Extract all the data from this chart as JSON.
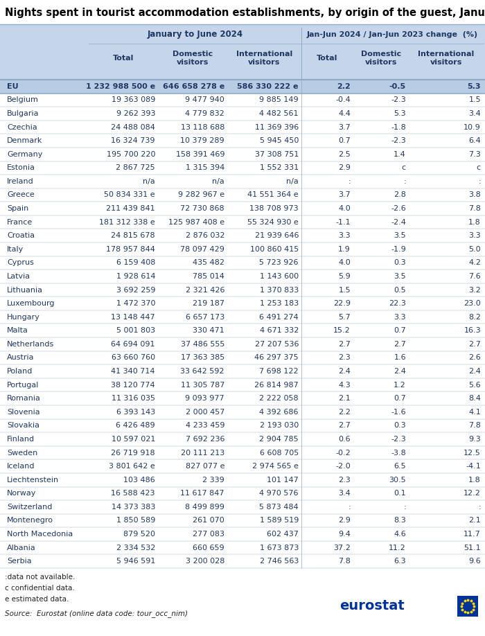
{
  "title": "Nights spent in tourist accommodation establishments, by origin of the guest, January to",
  "rows": [
    [
      "EU",
      "1 232 988 500 e",
      "646 658 278 e",
      "586 330 222 e",
      "2.2",
      "-0.5",
      "5.3"
    ],
    [
      "Belgium",
      "19 363 089",
      "9 477 940",
      "9 885 149",
      "-0.4",
      "-2.3",
      "1.5"
    ],
    [
      "Bulgaria",
      "9 262 393",
      "4 779 832",
      "4 482 561",
      "4.4",
      "5.3",
      "3.4"
    ],
    [
      "Czechia",
      "24 488 084",
      "13 118 688",
      "11 369 396",
      "3.7",
      "-1.8",
      "10.9"
    ],
    [
      "Denmark",
      "16 324 739",
      "10 379 289",
      "5 945 450",
      "0.7",
      "-2.3",
      "6.4"
    ],
    [
      "Germany",
      "195 700 220",
      "158 391 469",
      "37 308 751",
      "2.5",
      "1.4",
      "7.3"
    ],
    [
      "Estonia",
      "2 867 725",
      "1 315 394",
      "1 552 331",
      "2.9",
      "c",
      "c"
    ],
    [
      "Ireland",
      "n/a",
      "n/a",
      "n/a",
      ":",
      ":",
      ":"
    ],
    [
      "Greece",
      "50 834 331 e",
      "9 282 967 e",
      "41 551 364 e",
      "3.7",
      "2.8",
      "3.8"
    ],
    [
      "Spain",
      "211 439 841",
      "72 730 868",
      "138 708 973",
      "4.0",
      "-2.6",
      "7.8"
    ],
    [
      "France",
      "181 312 338 e",
      "125 987 408 e",
      "55 324 930 e",
      "-1.1",
      "-2.4",
      "1.8"
    ],
    [
      "Croatia",
      "24 815 678",
      "2 876 032",
      "21 939 646",
      "3.3",
      "3.5",
      "3.3"
    ],
    [
      "Italy",
      "178 957 844",
      "78 097 429",
      "100 860 415",
      "1.9",
      "-1.9",
      "5.0"
    ],
    [
      "Cyprus",
      "6 159 408",
      "435 482",
      "5 723 926",
      "4.0",
      "0.3",
      "4.2"
    ],
    [
      "Latvia",
      "1 928 614",
      "785 014",
      "1 143 600",
      "5.9",
      "3.5",
      "7.6"
    ],
    [
      "Lithuania",
      "3 692 259",
      "2 321 426",
      "1 370 833",
      "1.5",
      "0.5",
      "3.2"
    ],
    [
      "Luxembourg",
      "1 472 370",
      "219 187",
      "1 253 183",
      "22.9",
      "22.3",
      "23.0"
    ],
    [
      "Hungary",
      "13 148 447",
      "6 657 173",
      "6 491 274",
      "5.7",
      "3.3",
      "8.2"
    ],
    [
      "Malta",
      "5 001 803",
      "330 471",
      "4 671 332",
      "15.2",
      "0.7",
      "16.3"
    ],
    [
      "Netherlands",
      "64 694 091",
      "37 486 555",
      "27 207 536",
      "2.7",
      "2.7",
      "2.7"
    ],
    [
      "Austria",
      "63 660 760",
      "17 363 385",
      "46 297 375",
      "2.3",
      "1.6",
      "2.6"
    ],
    [
      "Poland",
      "41 340 714",
      "33 642 592",
      "7 698 122",
      "2.4",
      "2.4",
      "2.4"
    ],
    [
      "Portugal",
      "38 120 774",
      "11 305 787",
      "26 814 987",
      "4.3",
      "1.2",
      "5.6"
    ],
    [
      "Romania",
      "11 316 035",
      "9 093 977",
      "2 222 058",
      "2.1",
      "0.7",
      "8.4"
    ],
    [
      "Slovenia",
      "6 393 143",
      "2 000 457",
      "4 392 686",
      "2.2",
      "-1.6",
      "4.1"
    ],
    [
      "Slovakia",
      "6 426 489",
      "4 233 459",
      "2 193 030",
      "2.7",
      "0.3",
      "7.8"
    ],
    [
      "Finland",
      "10 597 021",
      "7 692 236",
      "2 904 785",
      "0.6",
      "-2.3",
      "9.3"
    ],
    [
      "Sweden",
      "26 719 918",
      "20 111 213",
      "6 608 705",
      "-0.2",
      "-3.8",
      "12.5"
    ],
    [
      "Iceland",
      "3 801 642 e",
      "827 077 e",
      "2 974 565 e",
      "-2.0",
      "6.5",
      "-4.1"
    ],
    [
      "Liechtenstein",
      "103 486",
      "2 339",
      "101 147",
      "2.3",
      "30.5",
      "1.8"
    ],
    [
      "Norway",
      "16 588 423",
      "11 617 847",
      "4 970 576",
      "3.4",
      "0.1",
      "12.2"
    ],
    [
      "Switzerland",
      "14 373 383",
      "8 499 899",
      "5 873 484",
      ":",
      ":",
      ":"
    ],
    [
      "Montenegro",
      "1 850 589",
      "261 070",
      "1 589 519",
      "2.9",
      "8.3",
      "2.1"
    ],
    [
      "North Macedonia",
      "879 520",
      "277 083",
      "602 437",
      "9.4",
      "4.6",
      "11.7"
    ],
    [
      "Albania",
      "2 334 532",
      "660 659",
      "1 673 873",
      "37.2",
      "11.2",
      "51.1"
    ],
    [
      "Serbia",
      "5 946 591",
      "3 200 028",
      "2 746 563",
      "7.8",
      "6.3",
      "9.6"
    ]
  ],
  "col_header1_left": "January to June 2024",
  "col_header1_right": "Jan-Jun 2024 / Jan-Jun 2023 change  (%)",
  "col_header2": [
    "",
    "Total",
    "Domestic\nvisitors",
    "International\nvisitors",
    "Total",
    "Domestic\nvisitors",
    "International\nvisitors"
  ],
  "footnote1": ":data not available.",
  "footnote2": "c confidential data.",
  "footnote3": "e estimated data.",
  "source": "Source:  Eurostat (online data code: tour_occ_nim)",
  "bg_title_white": "#ffffff",
  "bg_header_blue": "#c5d5ea",
  "bg_eu_row": "#b8cce4",
  "bg_white_row": "#ffffff",
  "bg_alt_row": "#ffffff",
  "text_dark": "#1f3864",
  "text_black": "#000000",
  "border_color": "#8eaac8",
  "eurostat_blue": "#003399"
}
